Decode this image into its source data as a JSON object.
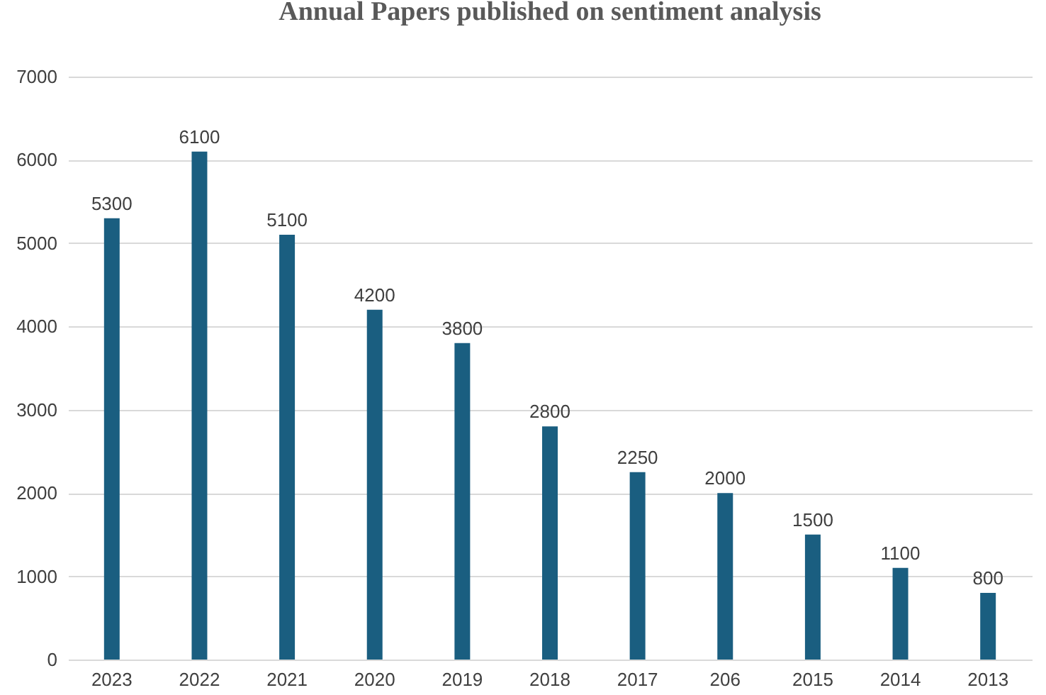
{
  "chart_data": {
    "type": "bar",
    "title": "Annual Papers published on sentiment analysis",
    "categories": [
      "2023",
      "2022",
      "2021",
      "2020",
      "2019",
      "2018",
      "2017",
      "206",
      "2015",
      "2014",
      "2013"
    ],
    "values": [
      5300,
      6100,
      5100,
      4200,
      3800,
      2800,
      2250,
      2000,
      1500,
      1100,
      800
    ],
    "color": "#1a5e80",
    "ylim": [
      0,
      7000
    ],
    "yticks": [
      0,
      1000,
      2000,
      3000,
      4000,
      5000,
      6000,
      7000
    ],
    "grid": "y",
    "data_labels": true
  }
}
